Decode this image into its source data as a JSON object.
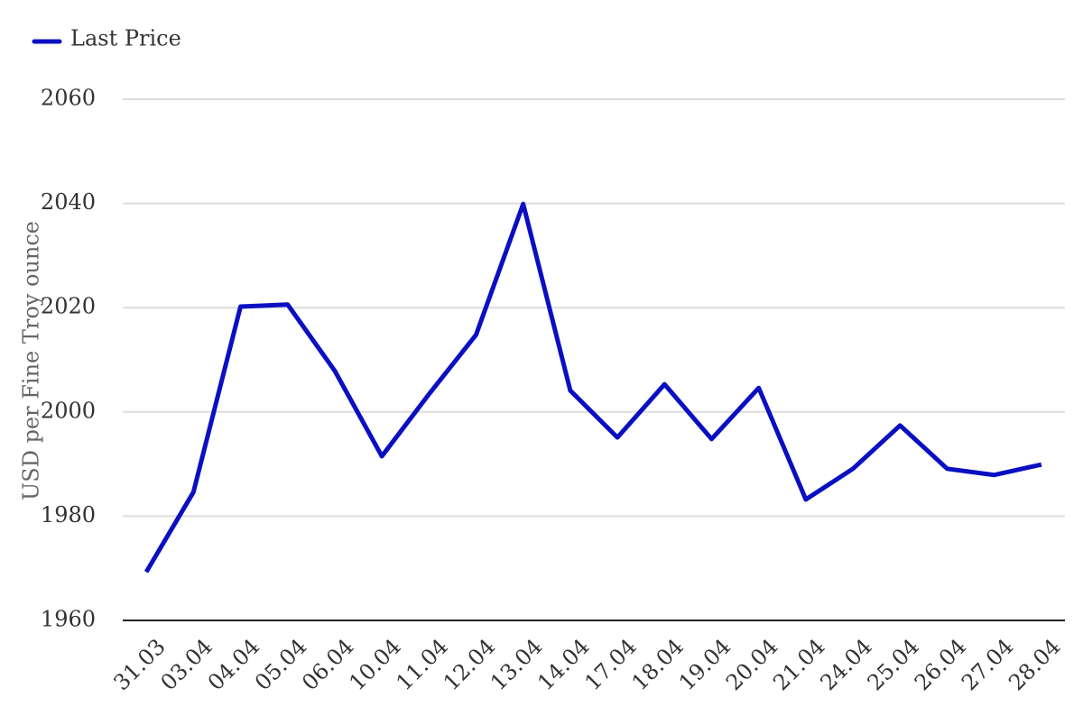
{
  "chart_data": {
    "type": "line",
    "y_label": "USD per Fine Troy ounce",
    "categories": [
      "31.03",
      "03.04",
      "04.04",
      "05.04",
      "06.04",
      "10.04",
      "11.04",
      "12.04",
      "13.04",
      "14.04",
      "17.04",
      "18.04",
      "19.04",
      "20.04",
      "21.04",
      "24.04",
      "25.04",
      "26.04",
      "27.04",
      "28.04"
    ],
    "series": [
      {
        "name": "Last Price",
        "color": "#0a0fc2",
        "values": [
          1969.3,
          1984.6,
          2020.2,
          2020.6,
          2007.9,
          1991.5,
          2003.4,
          2014.8,
          2039.9,
          2004.1,
          1995.1,
          2005.3,
          1994.8,
          2004.6,
          1983.2,
          1989.1,
          1997.4,
          1989.1,
          1987.9,
          1989.9
        ]
      }
    ],
    "ylim": [
      1960,
      2060
    ],
    "yticks": [
      1960,
      1980,
      2000,
      2020,
      2040,
      2060
    ],
    "grid": true,
    "legend": "top-left"
  }
}
